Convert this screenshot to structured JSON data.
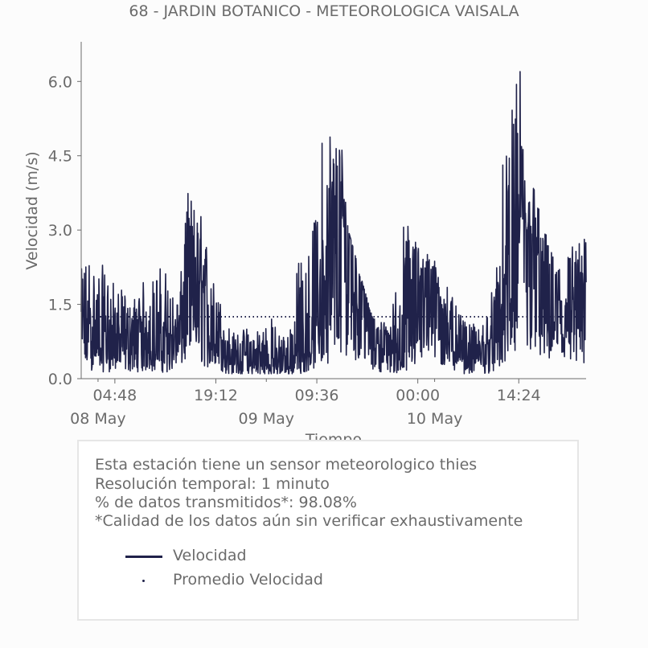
{
  "chart_data": {
    "type": "line",
    "title": "68 - JARDIN BOTANICO - METEOROLOGICA VAISALA",
    "xlabel": "Tiempo",
    "ylabel": "Velocidad (m/s)",
    "ylim": [
      0,
      6.8
    ],
    "yticks": [
      0.0,
      1.5,
      3.0,
      4.5,
      6.0
    ],
    "ytick_labels": [
      "0.0",
      "1.5",
      "3.0",
      "4.5",
      "6.0"
    ],
    "x_range_hours": [
      0,
      72
    ],
    "xticks": [
      {
        "hour": 4.8,
        "label": "04:48"
      },
      {
        "hour": 19.2,
        "label": "19:12"
      },
      {
        "hour": 33.6,
        "label": "09:36"
      },
      {
        "hour": 48.0,
        "label": "00:00"
      },
      {
        "hour": 62.4,
        "label": "14:24"
      }
    ],
    "minor_ticks_hours": [
      2.4,
      26.4,
      50.4
    ],
    "date_labels": [
      {
        "hour": 2.4,
        "label": "08 May"
      },
      {
        "hour": 26.4,
        "label": "09 May"
      },
      {
        "hour": 50.4,
        "label": "10 May"
      }
    ],
    "grid": false,
    "series": [
      {
        "name": "Velocidad",
        "style": "line",
        "color": "#20224a",
        "x_hours": [
          0,
          1,
          2,
          3,
          4,
          5,
          6,
          7,
          8,
          9,
          10,
          11,
          12,
          13,
          14,
          15,
          16,
          17,
          18,
          19,
          20,
          21,
          22,
          23,
          24,
          25,
          26,
          27,
          28,
          29,
          30,
          31,
          32,
          33,
          34,
          35,
          36,
          37,
          38,
          39,
          40,
          41,
          42,
          43,
          44,
          45,
          46,
          47,
          48,
          49,
          50,
          51,
          52,
          53,
          54,
          55,
          56,
          57,
          58,
          59,
          60,
          61,
          62,
          63,
          64,
          65,
          66,
          67,
          68,
          69,
          70,
          71,
          72
        ],
        "y_approx_centerline": [
          1.2,
          1.1,
          1.0,
          0.9,
          0.9,
          0.9,
          0.9,
          0.9,
          0.9,
          0.9,
          0.9,
          0.9,
          0.8,
          0.9,
          1.0,
          2.0,
          2.2,
          1.8,
          1.4,
          1.0,
          0.8,
          0.6,
          0.5,
          0.5,
          0.4,
          0.4,
          0.4,
          0.4,
          0.4,
          0.4,
          0.4,
          0.5,
          0.9,
          1.2,
          1.6,
          2.0,
          2.4,
          2.8,
          3.0,
          2.6,
          2.0,
          1.5,
          1.0,
          0.9,
          0.8,
          0.7,
          0.7,
          1.1,
          1.7,
          2.2,
          2.2,
          1.6,
          1.2,
          0.9,
          0.8,
          0.6,
          0.6,
          0.6,
          0.7,
          0.9,
          1.4,
          2.0,
          2.6,
          2.9,
          3.0,
          2.5,
          2.0,
          1.8,
          1.6,
          1.4,
          1.3,
          1.4,
          1.5
        ],
        "y_approx_max": [
          2.2,
          2.7,
          2.3,
          2.3,
          2.2,
          1.8,
          1.8,
          1.5,
          1.8,
          2.0,
          2.0,
          2.3,
          2.3,
          1.8,
          1.6,
          3.9,
          3.6,
          3.4,
          2.8,
          1.9,
          1.6,
          1.1,
          0.9,
          1.0,
          1.1,
          1.1,
          1.2,
          1.3,
          1.0,
          0.9,
          1.3,
          2.5,
          2.7,
          3.0,
          4.7,
          5.4,
          5.5,
          5.3,
          3.2,
          2.2,
          1.6,
          1.3,
          1.2,
          1.2,
          1.0,
          2.2,
          3.3,
          3.3,
          3.0,
          2.5,
          2.6,
          2.1,
          2.2,
          1.6,
          1.3,
          1.1,
          1.1,
          1.0,
          1.6,
          2.0,
          4.3,
          4.8,
          6.2,
          5.0,
          4.3,
          3.8,
          3.1,
          2.6,
          2.5,
          2.5,
          2.8,
          2.8,
          2.9
        ],
        "y_min": 0.0,
        "y_max": 6.2
      },
      {
        "name": "Promedio Velocidad",
        "style": "dotted",
        "color": "#20224a",
        "y": 1.25
      }
    ],
    "legend_placement": "bottom, inside annotation box"
  },
  "info_box": {
    "lines": [
      "Esta estación tiene un sensor meteorologico thies",
      "Resolución temporal: 1 minuto",
      "% de datos transmitidos*: 98.08%",
      "*Calidad de los datos aún sin verificar exhaustivamente"
    ],
    "legend": [
      {
        "label": "Velocidad",
        "marker": "line"
      },
      {
        "label": "Promedio Velocidad",
        "marker": "dot"
      }
    ]
  },
  "colors": {
    "series": "#20224a",
    "text": "#6b6b6b",
    "axis": "#6b6b6b",
    "box_border": "#e6e6e6"
  }
}
